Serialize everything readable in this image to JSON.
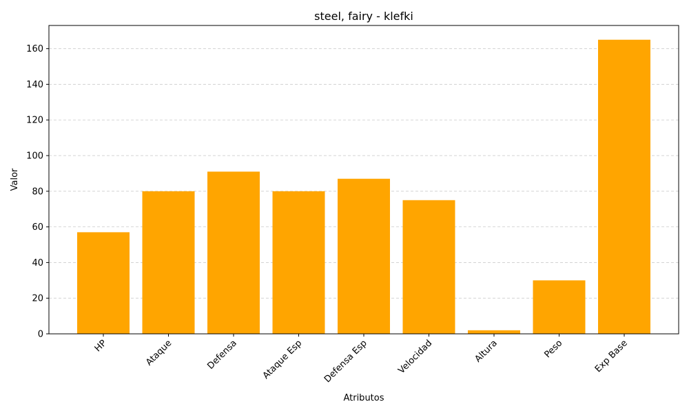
{
  "chart_data": {
    "type": "bar",
    "title": "steel, fairy - klefki",
    "xlabel": "Atributos",
    "ylabel": "Valor",
    "categories": [
      "HP",
      "Ataque",
      "Defensa",
      "Ataque Esp",
      "Defensa Esp",
      "Velocidad",
      "Altura",
      "Peso",
      "Exp Base"
    ],
    "values": [
      57,
      80,
      91,
      80,
      87,
      75,
      2,
      30,
      165
    ],
    "ylim": [
      0,
      173
    ],
    "yticks": [
      0,
      20,
      40,
      60,
      80,
      100,
      120,
      140,
      160
    ],
    "grid": "y-dashed",
    "bar_color": "#FFA500"
  }
}
